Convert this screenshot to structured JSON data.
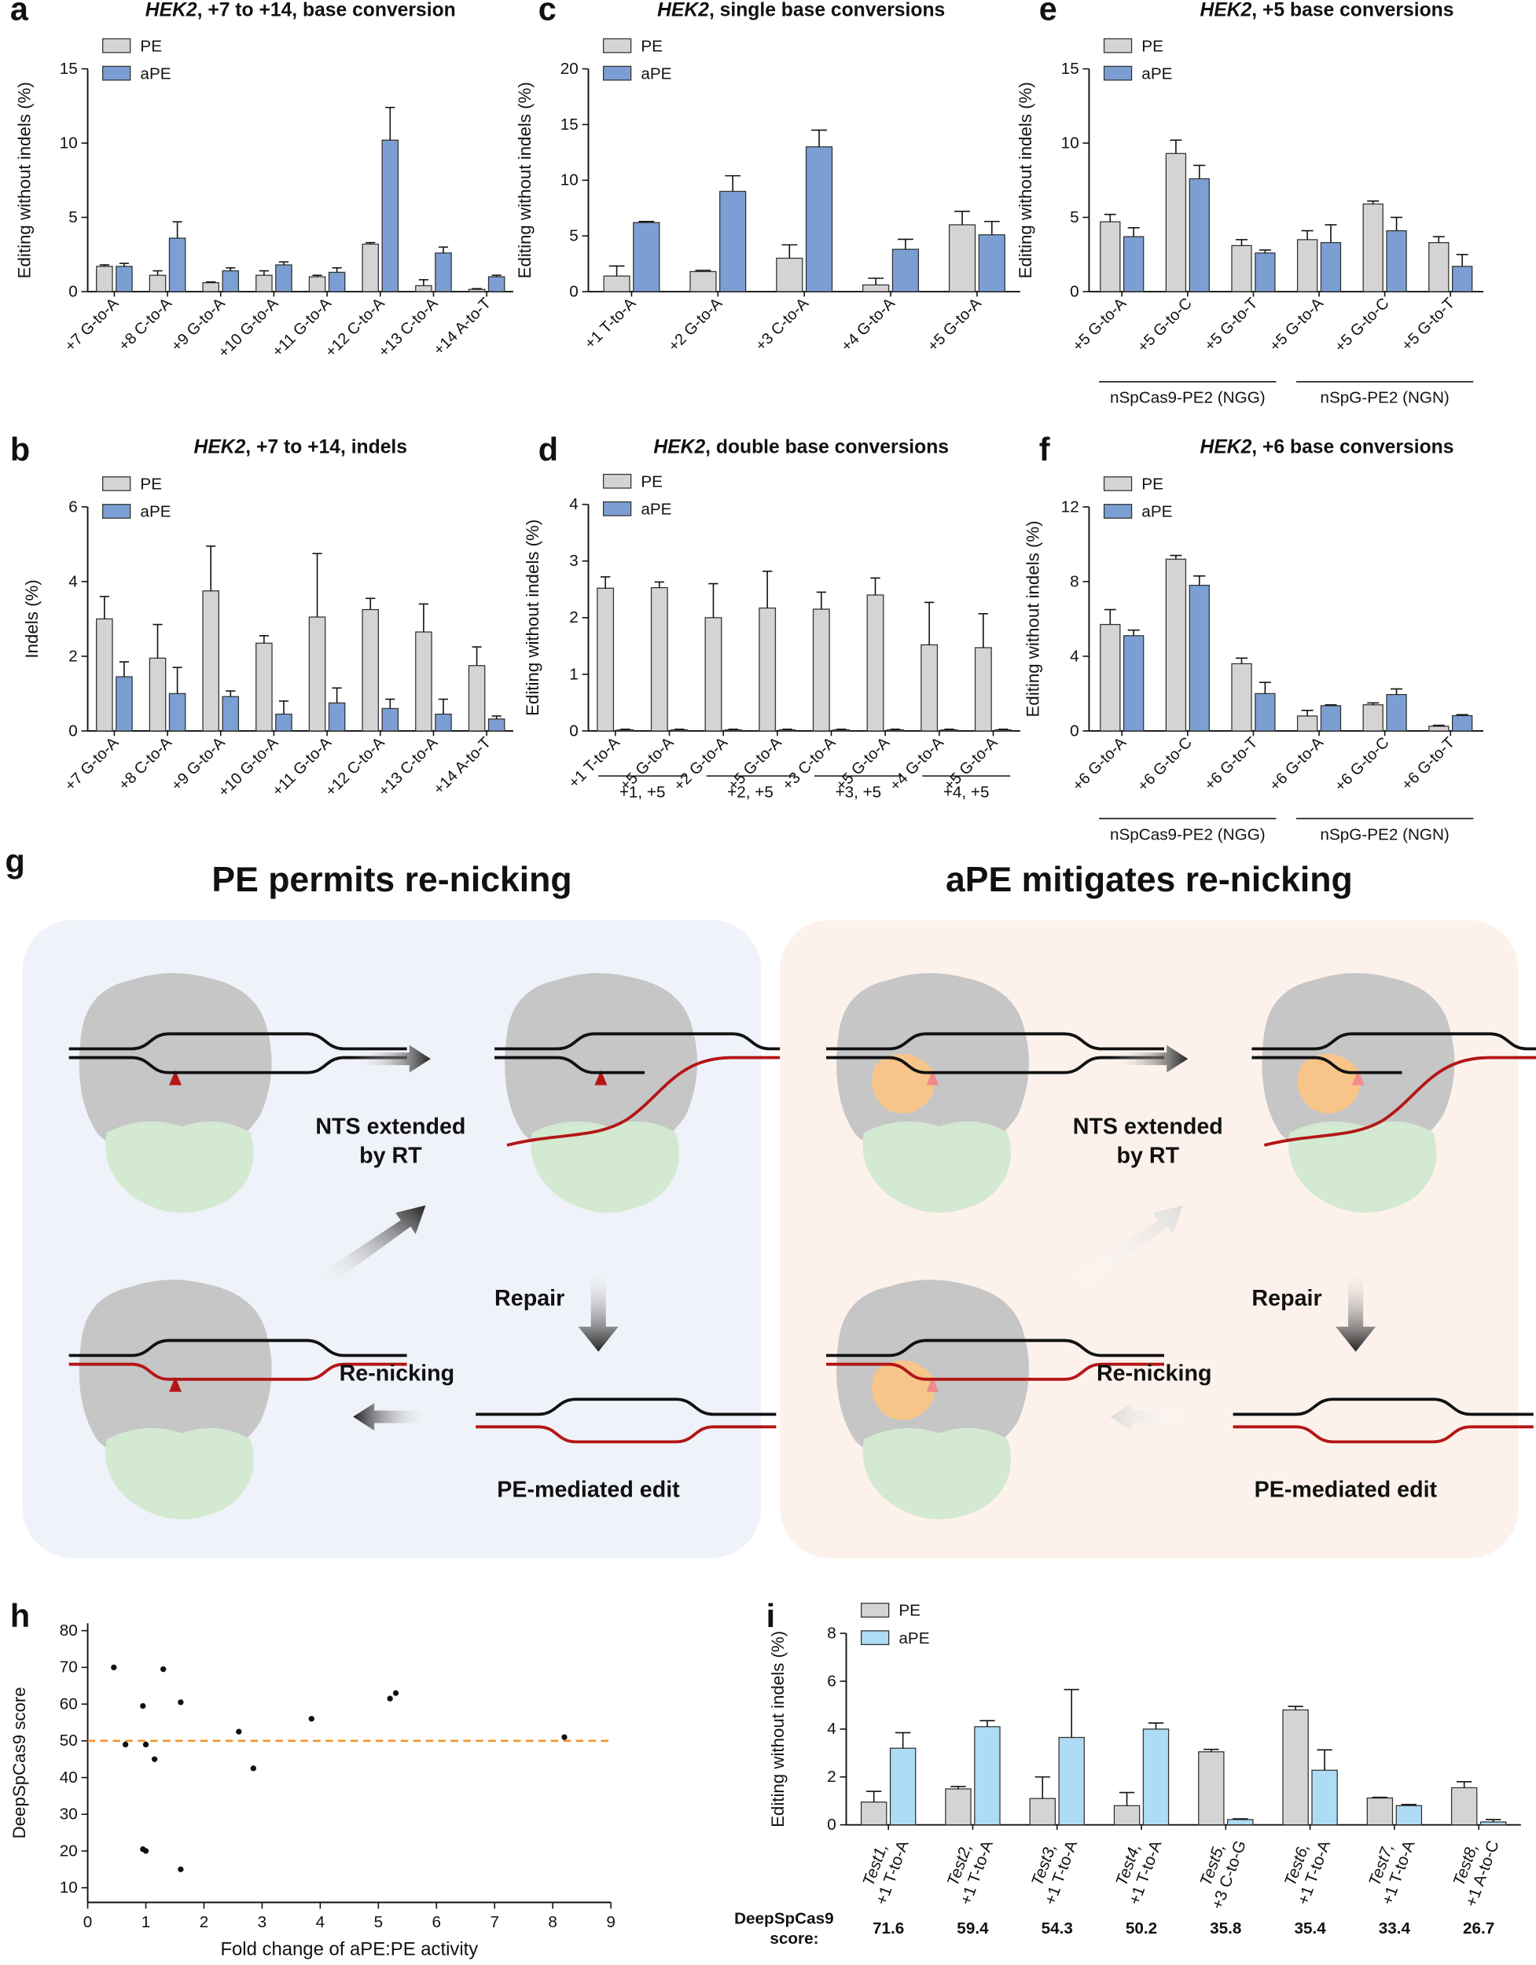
{
  "chart_data": [
    {
      "type": "bar",
      "panel": "a",
      "title": "HEK2, +7 to +14, base conversion",
      "y_label": "Editing without indels (%)",
      "categories": [
        "+7 G-to-A",
        "+8 C-to-A",
        "+9 G-to-A",
        "+10 G-to-A",
        "+11 G-to-A",
        "+12 C-to-A",
        "+13 C-to-A",
        "+14 A-to-T"
      ],
      "series": [
        {
          "name": "PE",
          "color": "#d4d4d4",
          "values": [
            1.7,
            1.1,
            0.6,
            1.1,
            1.0,
            3.2,
            0.4,
            0.15
          ],
          "errors": [
            0.1,
            0.3,
            0.05,
            0.3,
            0.1,
            0.1,
            0.4,
            0.05
          ]
        },
        {
          "name": "aPE",
          "color": "#7b9fd3",
          "values": [
            1.7,
            3.6,
            1.4,
            1.8,
            1.3,
            10.2,
            2.6,
            1.0
          ],
          "errors": [
            0.2,
            1.1,
            0.2,
            0.2,
            0.3,
            2.2,
            0.4,
            0.1
          ]
        }
      ],
      "ylim": [
        0,
        15
      ],
      "yticks": [
        0,
        5,
        10,
        15
      ]
    },
    {
      "type": "bar",
      "panel": "b",
      "title": "HEK2, +7 to +14, indels",
      "y_label": "Indels (%)",
      "categories": [
        "+7 G-to-A",
        "+8 C-to-A",
        "+9 G-to-A",
        "+10 G-to-A",
        "+11 G-to-A",
        "+12 C-to-A",
        "+13 C-to-A",
        "+14 A-to-T"
      ],
      "series": [
        {
          "name": "PE",
          "color": "#d4d4d4",
          "values": [
            3.0,
            1.95,
            3.75,
            2.35,
            3.05,
            3.25,
            2.65,
            1.75
          ],
          "errors": [
            0.6,
            0.9,
            1.2,
            0.2,
            1.7,
            0.3,
            0.75,
            0.5
          ]
        },
        {
          "name": "aPE",
          "color": "#7b9fd3",
          "values": [
            1.45,
            1.0,
            0.92,
            0.45,
            0.75,
            0.6,
            0.45,
            0.32
          ],
          "errors": [
            0.4,
            0.7,
            0.15,
            0.35,
            0.4,
            0.25,
            0.4,
            0.08
          ]
        }
      ],
      "ylim": [
        0,
        6
      ],
      "yticks": [
        0,
        2,
        4,
        6
      ]
    },
    {
      "type": "bar",
      "panel": "c",
      "title": "HEK2, single base conversions",
      "y_label": "Editing without indels (%)",
      "categories": [
        "+1 T-to-A",
        "+2 G-to-A",
        "+3 C-to-A",
        "+4 G-to-A",
        "+5 G-to-A"
      ],
      "series": [
        {
          "name": "PE",
          "color": "#d4d4d4",
          "values": [
            1.4,
            1.8,
            3.0,
            0.6,
            6.0
          ],
          "errors": [
            0.9,
            0.1,
            1.2,
            0.6,
            1.2
          ]
        },
        {
          "name": "aPE",
          "color": "#7b9fd3",
          "values": [
            6.2,
            9.0,
            13.0,
            3.8,
            5.1
          ],
          "errors": [
            0.1,
            1.4,
            1.5,
            0.9,
            1.2
          ]
        }
      ],
      "ylim": [
        0,
        20
      ],
      "yticks": [
        0,
        5,
        10,
        15,
        20
      ]
    },
    {
      "type": "bar",
      "panel": "d",
      "title": "HEK2, double base conversions",
      "y_label": "Editing without indels (%)",
      "categories": [
        "+1 T-to-A",
        "+5 G-to-A",
        "+2 G-to-A",
        "+5 G-to-A",
        "+3 C-to-A",
        "+5 G-to-A",
        "+4 G-to-A",
        "+5 G-to-A"
      ],
      "groups": [
        "+1, +5",
        "+2, +5",
        "+3, +5",
        "+4, +5"
      ],
      "series": [
        {
          "name": "PE",
          "color": "#d4d4d4",
          "values": [
            2.52,
            2.53,
            2.0,
            2.17,
            2.15,
            2.4,
            1.52,
            1.47
          ],
          "errors": [
            0.2,
            0.1,
            0.6,
            0.65,
            0.3,
            0.3,
            0.75,
            0.6
          ]
        },
        {
          "name": "aPE",
          "color": "#7b9fd3",
          "values": [
            0.02,
            0.02,
            0.02,
            0.02,
            0.02,
            0.02,
            0.02,
            0.02
          ],
          "errors": [
            0.01,
            0.01,
            0.01,
            0.01,
            0.01,
            0.01,
            0.01,
            0.01
          ]
        }
      ],
      "ylim": [
        0,
        4
      ],
      "yticks": [
        0,
        1,
        2,
        3,
        4
      ]
    },
    {
      "type": "bar",
      "panel": "e",
      "title": "HEK2, +5 base conversions",
      "y_label": "Editing without indels (%)",
      "categories": [
        "+5 G-to-A",
        "+5 G-to-C",
        "+5 G-to-T",
        "+5 G-to-A",
        "+5 G-to-C",
        "+5 G-to-T"
      ],
      "groups": [
        "nSpCas9-PE2 (NGG)",
        "nSpG-PE2 (NGN)"
      ],
      "series": [
        {
          "name": "PE",
          "color": "#d4d4d4",
          "values": [
            4.7,
            9.3,
            3.1,
            3.5,
            5.9,
            3.3
          ],
          "errors": [
            0.5,
            0.9,
            0.4,
            0.6,
            0.2,
            0.4
          ]
        },
        {
          "name": "aPE",
          "color": "#7b9fd3",
          "values": [
            3.7,
            7.6,
            2.6,
            3.3,
            4.1,
            1.7
          ],
          "errors": [
            0.6,
            0.9,
            0.2,
            1.2,
            0.9,
            0.8
          ]
        }
      ],
      "ylim": [
        0,
        15
      ],
      "yticks": [
        0,
        5,
        10,
        15
      ]
    },
    {
      "type": "bar",
      "panel": "f",
      "title": "HEK2, +6 base conversions",
      "y_label": "Editing without indels (%)",
      "categories": [
        "+6 G-to-A",
        "+6 G-to-C",
        "+6 G-to-T",
        "+6 G-to-A",
        "+6 G-to-C",
        "+6 G-to-T"
      ],
      "groups": [
        "nSpCas9-PE2 (NGG)",
        "nSpG-PE2 (NGN)"
      ],
      "series": [
        {
          "name": "PE",
          "color": "#d4d4d4",
          "values": [
            5.7,
            9.2,
            3.6,
            0.8,
            1.4,
            0.25
          ],
          "errors": [
            0.8,
            0.2,
            0.3,
            0.3,
            0.1,
            0.05
          ]
        },
        {
          "name": "aPE",
          "color": "#7b9fd3",
          "values": [
            5.1,
            7.8,
            2.0,
            1.35,
            1.95,
            0.82
          ],
          "errors": [
            0.3,
            0.5,
            0.6,
            0.05,
            0.3,
            0.05
          ]
        }
      ],
      "ylim": [
        0,
        12
      ],
      "yticks": [
        0,
        4,
        8,
        12
      ]
    },
    {
      "type": "scatter",
      "panel": "h",
      "x_label": "Fold change of aPE:PE activity",
      "y_label": "DeepSpCas9 score",
      "x": [
        0.45,
        0.65,
        0.95,
        0.95,
        1.0,
        1.0,
        1.15,
        1.3,
        1.6,
        1.6,
        2.6,
        2.85,
        3.85,
        5.2,
        5.3,
        8.2
      ],
      "values": [
        70,
        49,
        59.5,
        20.5,
        20,
        49,
        45,
        69.5,
        60.5,
        15,
        52.5,
        42.5,
        56,
        61.5,
        63,
        51
      ],
      "color": "#111111",
      "refline": {
        "value": 50,
        "color": "#f0962d"
      },
      "xlim": [
        0,
        9
      ],
      "xticks": [
        0,
        1,
        2,
        3,
        4,
        5,
        6,
        7,
        8,
        9
      ],
      "ylim": [
        6,
        82
      ],
      "yticks": [
        10,
        20,
        30,
        40,
        50,
        60,
        70,
        80
      ]
    },
    {
      "type": "bar",
      "panel": "i",
      "y_label": "Editing without indels (%)",
      "categories": [
        "Test1, +1 T-to-A",
        "Test2, +1 T-to-A",
        "Test3, +1 T-to-A",
        "Test4, +1 T-to-A",
        "Test5, +3 C-to-G",
        "Test6, +1 T-to-A",
        "Test7, +1 T-to-A",
        "Test8, +1 A-to-C"
      ],
      "series": [
        {
          "name": "PE",
          "color": "#d4d4d4",
          "values": [
            0.95,
            1.5,
            1.1,
            0.8,
            3.05,
            4.8,
            1.12,
            1.55
          ],
          "errors": [
            0.45,
            0.1,
            0.9,
            0.55,
            0.1,
            0.15,
            0.03,
            0.25
          ]
        },
        {
          "name": "aPE",
          "color": "#aedcf5",
          "values": [
            3.2,
            4.1,
            3.65,
            4.0,
            0.22,
            2.28,
            0.8,
            0.12
          ],
          "errors": [
            0.65,
            0.25,
            2.0,
            0.25,
            0.03,
            0.85,
            0.05,
            0.1
          ]
        }
      ],
      "score_label": "DeepSpCas9 score:",
      "scores": [
        71.6,
        59.4,
        54.3,
        50.2,
        35.8,
        35.4,
        33.4,
        26.7
      ],
      "ylim": [
        0,
        8
      ],
      "yticks": [
        0,
        2,
        4,
        6,
        8
      ]
    }
  ],
  "diagram": {
    "panel": "g",
    "schemes": [
      {
        "title": "PE permits re-nicking",
        "extended": [
          "NTS extended",
          "by RT"
        ],
        "repair": "Repair",
        "renicking": "Re-nicking",
        "edit": "PE-mediated edit"
      },
      {
        "title": "aPE mitigates re-nicking",
        "extended": [
          "NTS extended",
          "by RT"
        ],
        "repair": "Repair",
        "renicking": "Re-nicking",
        "edit": "PE-mediated edit"
      }
    ]
  }
}
